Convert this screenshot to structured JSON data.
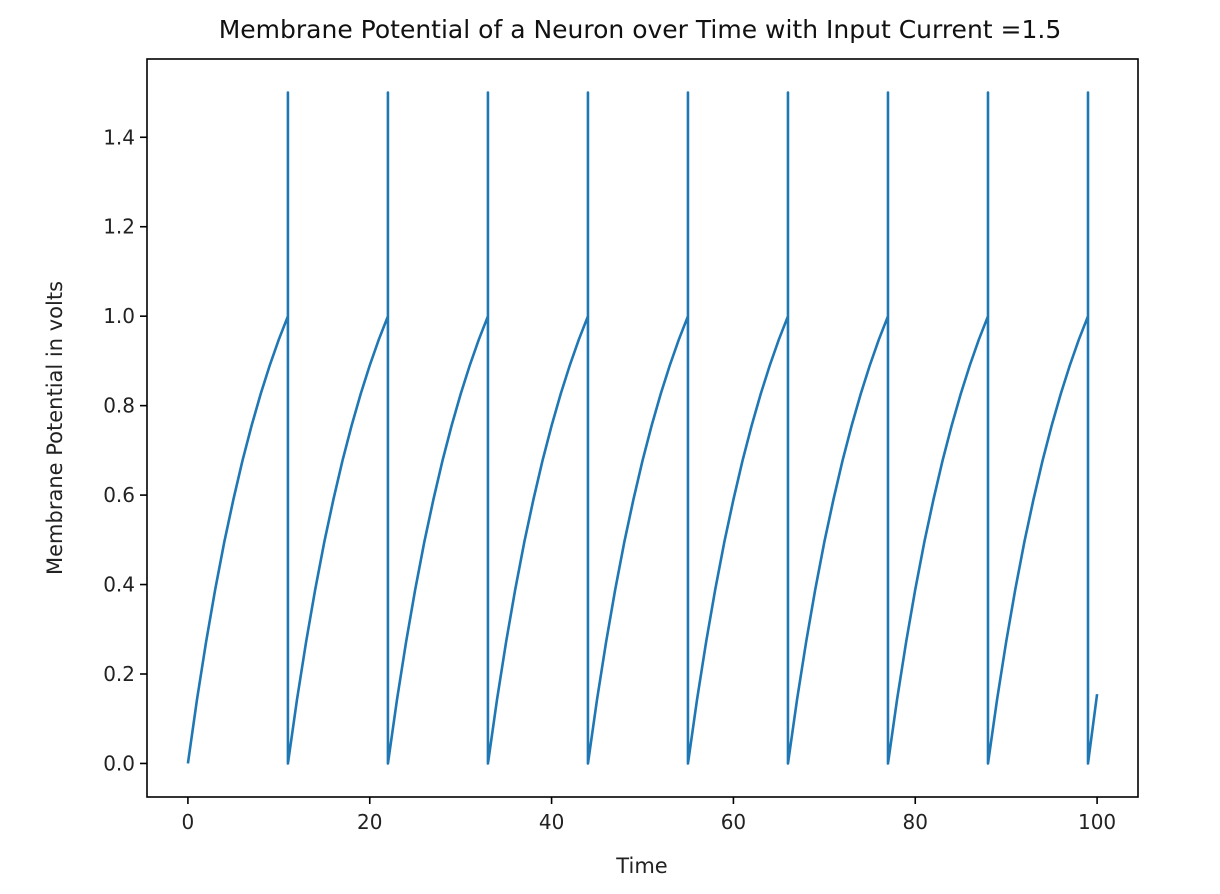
{
  "chart_data": {
    "type": "line",
    "title": "Membrane Potential of a Neuron over Time with Input Current =1.5",
    "xlabel": "Time",
    "ylabel": "Membrane Potential in volts",
    "xlim": [
      -4.5,
      104.5
    ],
    "ylim": [
      -0.075,
      1.575
    ],
    "xticks": [
      0,
      20,
      40,
      60,
      80,
      100
    ],
    "xtick_labels": [
      "0",
      "20",
      "40",
      "60",
      "80",
      "100"
    ],
    "yticks": [
      0.0,
      0.2,
      0.4,
      0.6,
      0.8,
      1.0,
      1.2,
      1.4
    ],
    "ytick_labels": [
      "0.0",
      "0.2",
      "0.4",
      "0.6",
      "0.8",
      "1.0",
      "1.2",
      "1.4"
    ],
    "grid": false,
    "line_color": "#1f77b4",
    "series": [
      {
        "x": [
          0,
          1,
          2,
          3,
          4,
          5,
          6,
          7,
          8,
          9,
          10,
          11,
          11,
          11,
          12,
          13,
          14,
          15,
          16,
          17,
          18,
          19,
          20,
          21,
          22,
          22,
          22,
          23,
          24,
          25,
          26,
          27,
          28,
          29,
          30,
          31,
          32,
          33,
          33,
          33,
          34,
          35,
          36,
          37,
          38,
          39,
          40,
          41,
          42,
          43,
          44,
          44,
          44,
          45,
          46,
          47,
          48,
          49,
          50,
          51,
          52,
          53,
          54,
          55,
          55,
          55,
          56,
          57,
          58,
          59,
          60,
          61,
          62,
          63,
          64,
          65,
          66,
          66,
          66,
          67,
          68,
          69,
          70,
          71,
          72,
          73,
          74,
          75,
          76,
          77,
          77,
          77,
          78,
          79,
          80,
          81,
          82,
          83,
          84,
          85,
          86,
          87,
          88,
          88,
          88,
          89,
          90,
          91,
          92,
          93,
          94,
          95,
          96,
          97,
          98,
          99,
          99,
          99,
          100
        ],
        "y": [
          0.0,
          0.143,
          0.272,
          0.389,
          0.495,
          0.59,
          0.677,
          0.755,
          0.826,
          0.89,
          0.948,
          1.0,
          1.5,
          0.0,
          0.143,
          0.272,
          0.389,
          0.495,
          0.59,
          0.677,
          0.755,
          0.826,
          0.89,
          0.948,
          1.0,
          1.5,
          0.0,
          0.143,
          0.272,
          0.389,
          0.495,
          0.59,
          0.677,
          0.755,
          0.826,
          0.89,
          0.948,
          1.0,
          1.5,
          0.0,
          0.143,
          0.272,
          0.389,
          0.495,
          0.59,
          0.677,
          0.755,
          0.826,
          0.89,
          0.948,
          1.0,
          1.5,
          0.0,
          0.143,
          0.272,
          0.389,
          0.495,
          0.59,
          0.677,
          0.755,
          0.826,
          0.89,
          0.948,
          1.0,
          1.5,
          0.0,
          0.143,
          0.272,
          0.389,
          0.495,
          0.59,
          0.677,
          0.755,
          0.826,
          0.89,
          0.948,
          1.0,
          1.5,
          0.0,
          0.143,
          0.272,
          0.389,
          0.495,
          0.59,
          0.677,
          0.755,
          0.826,
          0.89,
          0.948,
          1.0,
          1.5,
          0.0,
          0.143,
          0.272,
          0.389,
          0.495,
          0.59,
          0.677,
          0.755,
          0.826,
          0.89,
          0.948,
          1.0,
          1.5,
          0.0,
          0.143,
          0.272,
          0.389,
          0.495,
          0.59,
          0.677,
          0.755,
          0.826,
          0.89,
          0.948,
          1.0,
          1.5,
          0.0,
          0.155
        ]
      }
    ]
  }
}
